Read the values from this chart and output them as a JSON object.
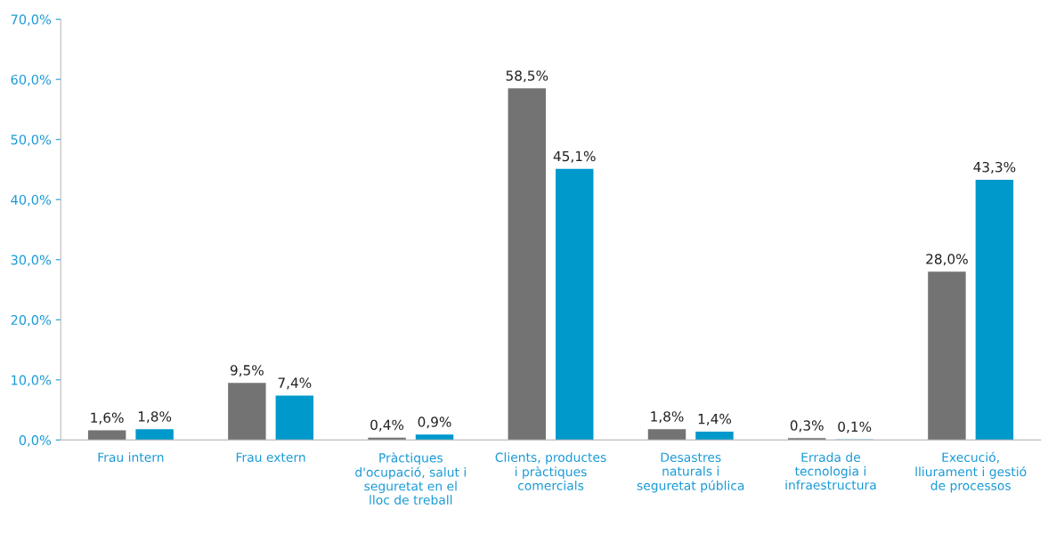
{
  "chart_data": {
    "type": "bar",
    "categories": [
      "Frau intern",
      "Frau extern",
      "Pràctiques\nd'ocupació, salut i\nseguretat en el\nlloc de treball",
      "Clients, productes\ni pràctiques\ncomercials",
      "Desastres\nnaturals i\nseguretat pública",
      "Errada de\ntecnologia i\ninfraestructura",
      "Execució,\nlliurament i gestió\nde processos"
    ],
    "series": [
      {
        "color": "#737373",
        "values": [
          1.6,
          9.5,
          0.4,
          58.5,
          1.8,
          0.3,
          28.0
        ],
        "value_labels": [
          "1,6%",
          "9,5%",
          "0,4%",
          "58,5%",
          "1,8%",
          "0,3%",
          "28,0%"
        ]
      },
      {
        "color": "#0099cc",
        "values": [
          1.8,
          7.4,
          0.9,
          45.1,
          1.4,
          0.1,
          43.3
        ],
        "value_labels": [
          "1,8%",
          "7,4%",
          "0,9%",
          "45,1%",
          "1,4%",
          "0,1%",
          "43,3%"
        ]
      }
    ],
    "ylim": [
      0,
      70
    ],
    "yticks": [
      {
        "value": 0,
        "label": "0,0%"
      },
      {
        "value": 10,
        "label": "10,0%"
      },
      {
        "value": 20,
        "label": "20,0%"
      },
      {
        "value": 30,
        "label": "30,0%"
      },
      {
        "value": 40,
        "label": "40,0%"
      },
      {
        "value": 50,
        "label": "50,0%"
      },
      {
        "value": 60,
        "label": "60,0%"
      },
      {
        "value": 70,
        "label": "70,0%"
      }
    ],
    "grid": false
  }
}
